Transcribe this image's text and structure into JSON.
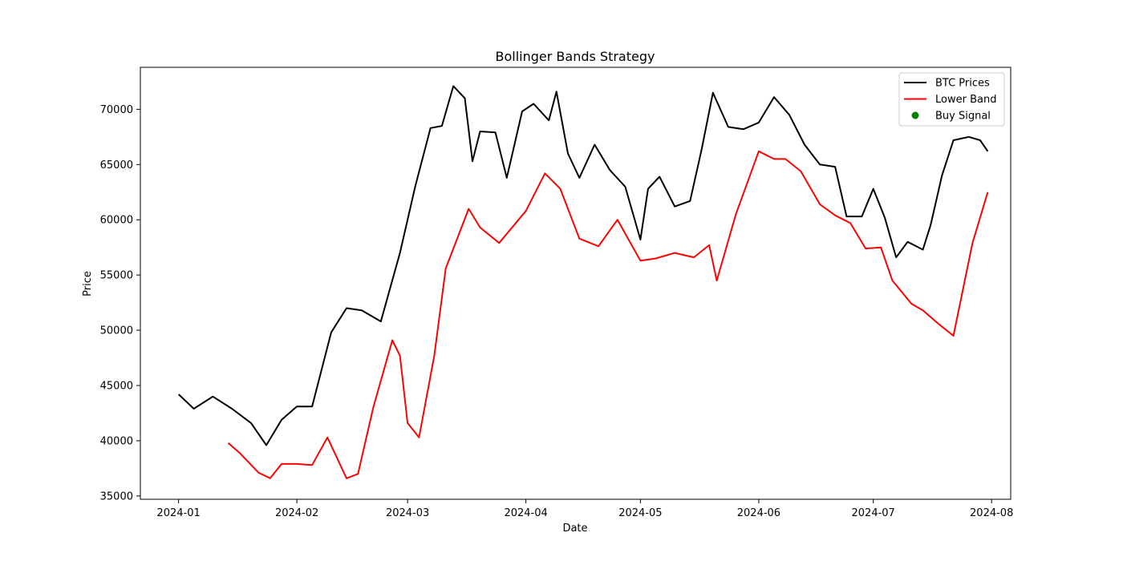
{
  "chart_data": {
    "type": "line",
    "title": "Bollinger Bands Strategy",
    "xlabel": "Date",
    "ylabel": "Price",
    "xlim": [
      "2023-12-22",
      "2024-08-06"
    ],
    "ylim": [
      34700,
      73800
    ],
    "xticks": [
      "2024-01-01",
      "2024-02-01",
      "2024-03-01",
      "2024-04-01",
      "2024-05-01",
      "2024-06-01",
      "2024-07-01",
      "2024-08-01"
    ],
    "xtick_labels": [
      "2024-01",
      "2024-02",
      "2024-03",
      "2024-04",
      "2024-05",
      "2024-06",
      "2024-07",
      "2024-08"
    ],
    "yticks": [
      35000,
      40000,
      45000,
      50000,
      55000,
      60000,
      65000,
      70000
    ],
    "ytick_labels": [
      "35000",
      "40000",
      "45000",
      "50000",
      "55000",
      "60000",
      "65000",
      "70000"
    ],
    "grid": false,
    "legend_position": "upper right",
    "series": [
      {
        "name": "BTC Prices",
        "color": "#000000",
        "style": "line",
        "x": [
          "2024-01-01",
          "2024-01-05",
          "2024-01-10",
          "2024-01-15",
          "2024-01-20",
          "2024-01-24",
          "2024-01-28",
          "2024-02-01",
          "2024-02-05",
          "2024-02-10",
          "2024-02-14",
          "2024-02-18",
          "2024-02-23",
          "2024-02-28",
          "2024-03-03",
          "2024-03-07",
          "2024-03-10",
          "2024-03-13",
          "2024-03-16",
          "2024-03-18",
          "2024-03-20",
          "2024-03-24",
          "2024-03-27",
          "2024-03-31",
          "2024-04-03",
          "2024-04-07",
          "2024-04-09",
          "2024-04-12",
          "2024-04-15",
          "2024-04-19",
          "2024-04-23",
          "2024-04-27",
          "2024-05-01",
          "2024-05-03",
          "2024-05-06",
          "2024-05-10",
          "2024-05-14",
          "2024-05-17",
          "2024-05-20",
          "2024-05-24",
          "2024-05-28",
          "2024-06-01",
          "2024-06-05",
          "2024-06-09",
          "2024-06-13",
          "2024-06-17",
          "2024-06-21",
          "2024-06-24",
          "2024-06-28",
          "2024-07-01",
          "2024-07-04",
          "2024-07-07",
          "2024-07-10",
          "2024-07-14",
          "2024-07-16",
          "2024-07-19",
          "2024-07-22",
          "2024-07-26",
          "2024-07-29",
          "2024-07-31"
        ],
        "y": [
          44200,
          42900,
          44000,
          42900,
          41600,
          39600,
          41900,
          43100,
          43100,
          49800,
          52000,
          51800,
          50800,
          57000,
          63000,
          68300,
          68500,
          72100,
          71000,
          65300,
          68000,
          67900,
          63800,
          69800,
          70500,
          69000,
          71600,
          66000,
          63800,
          66800,
          64500,
          63000,
          58200,
          62800,
          63900,
          61200,
          61700,
          66300,
          71500,
          68400,
          68200,
          68800,
          71100,
          69500,
          66800,
          65000,
          64800,
          60300,
          60300,
          62800,
          60200,
          56600,
          58000,
          57300,
          59500,
          64000,
          67200,
          67500,
          67200,
          66200
        ]
      },
      {
        "name": "Lower Band",
        "color": "#ff0000",
        "style": "line",
        "x": [
          "2024-01-14",
          "2024-01-17",
          "2024-01-22",
          "2024-01-25",
          "2024-01-28",
          "2024-02-01",
          "2024-02-05",
          "2024-02-09",
          "2024-02-14",
          "2024-02-17",
          "2024-02-21",
          "2024-02-26",
          "2024-02-28",
          "2024-03-01",
          "2024-03-04",
          "2024-03-08",
          "2024-03-11",
          "2024-03-17",
          "2024-03-20",
          "2024-03-25",
          "2024-04-01",
          "2024-04-06",
          "2024-04-10",
          "2024-04-15",
          "2024-04-20",
          "2024-04-25",
          "2024-05-01",
          "2024-05-05",
          "2024-05-10",
          "2024-05-15",
          "2024-05-19",
          "2024-05-21",
          "2024-05-26",
          "2024-06-01",
          "2024-06-05",
          "2024-06-08",
          "2024-06-12",
          "2024-06-17",
          "2024-06-21",
          "2024-06-25",
          "2024-06-29",
          "2024-07-03",
          "2024-07-06",
          "2024-07-11",
          "2024-07-14",
          "2024-07-18",
          "2024-07-22",
          "2024-07-27",
          "2024-07-31"
        ],
        "y": [
          39800,
          38900,
          37100,
          36600,
          37900,
          37900,
          37800,
          40300,
          36600,
          37000,
          43000,
          49100,
          47700,
          41600,
          40300,
          47700,
          55600,
          61000,
          59300,
          57900,
          60800,
          64200,
          62800,
          58300,
          57600,
          60000,
          56300,
          56500,
          57000,
          56600,
          57700,
          54500,
          60500,
          66200,
          65500,
          65500,
          64400,
          61400,
          60400,
          59700,
          57400,
          57500,
          54500,
          52400,
          51800,
          50600,
          49500,
          57900,
          62500
        ]
      },
      {
        "name": "Buy Signal",
        "color": "#008000",
        "style": "marker",
        "x": [],
        "y": []
      }
    ]
  }
}
